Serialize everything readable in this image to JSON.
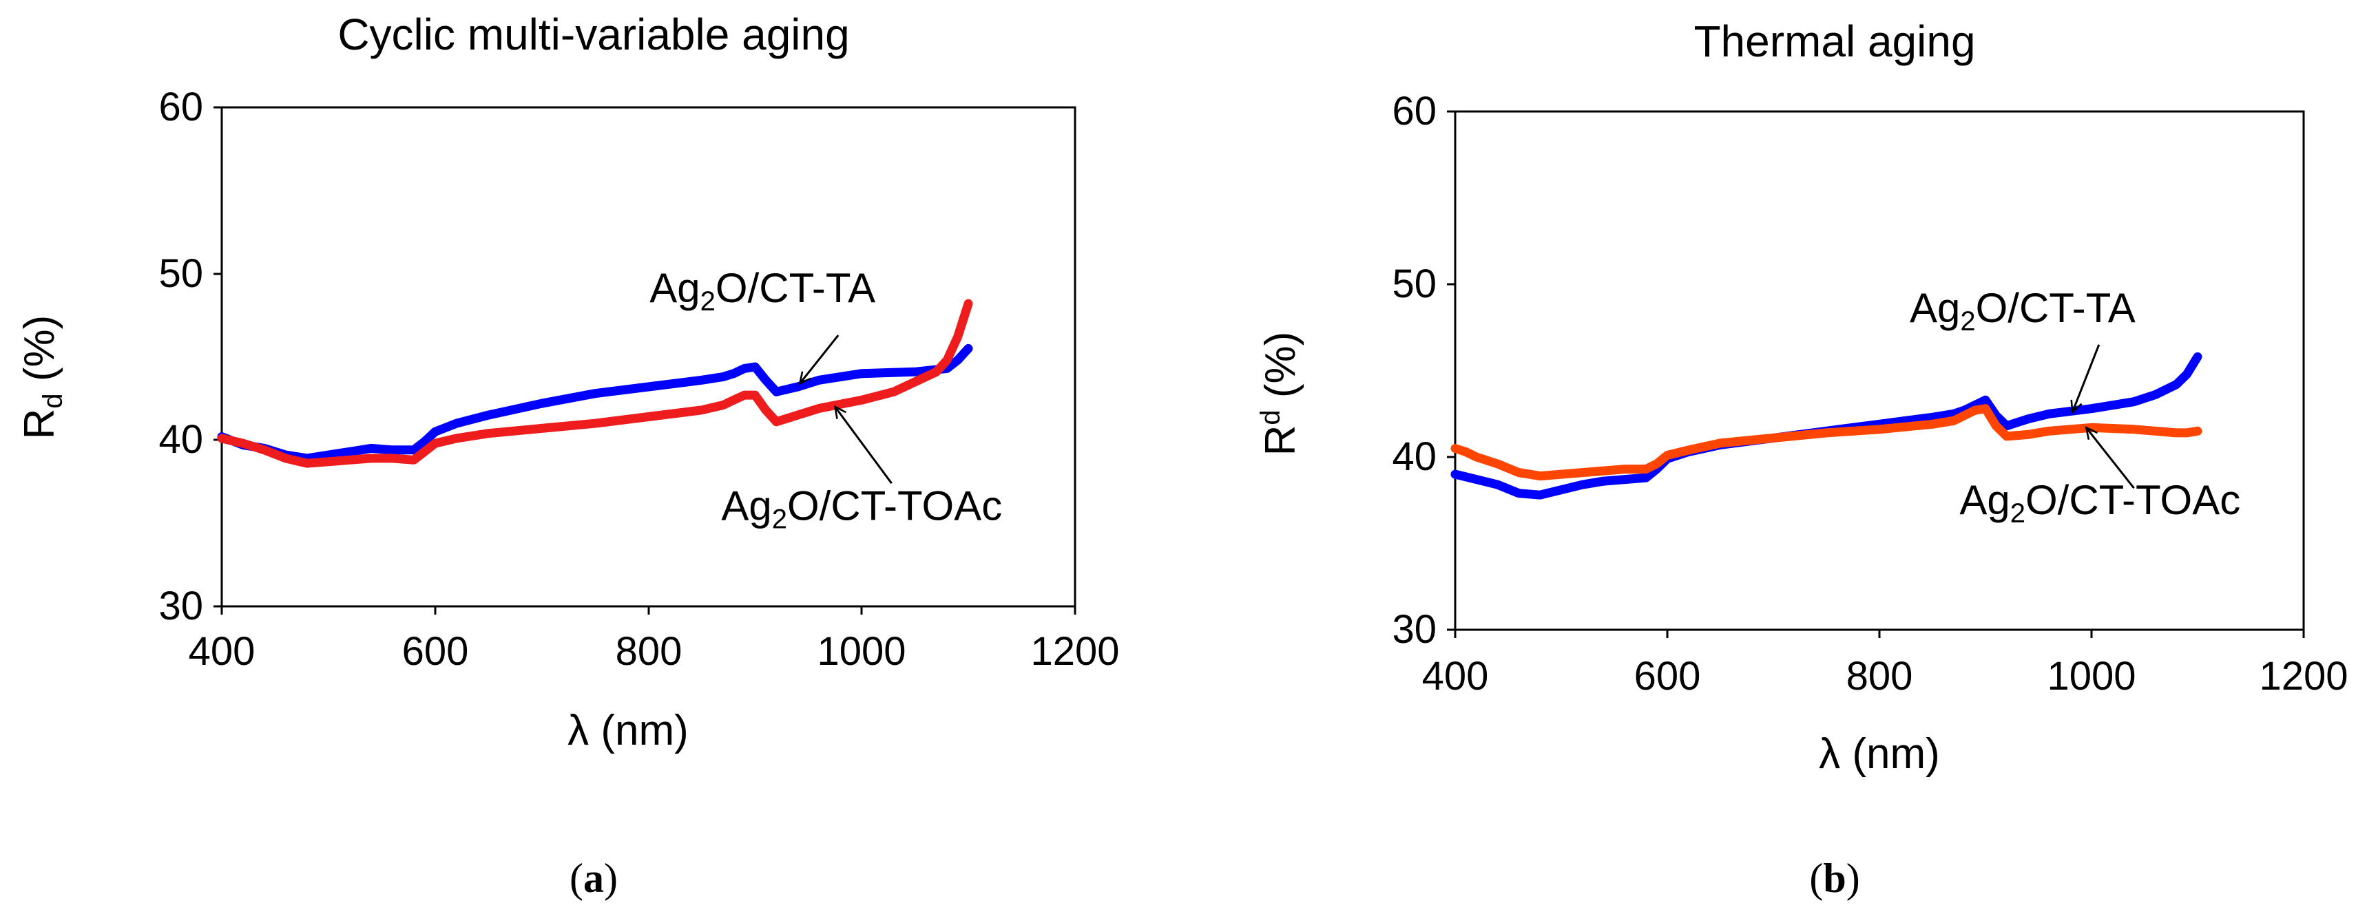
{
  "chart_data": [
    {
      "type": "line",
      "title": "Cyclic multi-variable aging",
      "xlabel": "λ (nm)",
      "ylabel": "R",
      "ylabel_sub": "d",
      "ylabel_unit": " (%)",
      "xlim": [
        400,
        1200
      ],
      "ylim": [
        30,
        60
      ],
      "xticks": [
        "400",
        "600",
        "800",
        "1000",
        "1200"
      ],
      "yticks": [
        "30",
        "40",
        "50",
        "60"
      ],
      "panel_label_open": "(",
      "panel_label": "a",
      "panel_label_close": ")",
      "series": [
        {
          "name": "Ag2O/CT-TA",
          "label_base": "Ag",
          "label_sub": "2",
          "label_rest": "O/CT-TA",
          "color": "#0000ff",
          "x": [
            400,
            420,
            440,
            460,
            480,
            500,
            520,
            540,
            560,
            580,
            590,
            600,
            620,
            650,
            700,
            750,
            800,
            850,
            870,
            880,
            890,
            900,
            910,
            920,
            940,
            960,
            1000,
            1050,
            1080,
            1090,
            1100
          ],
          "y": [
            40.2,
            39.7,
            39.5,
            39.1,
            38.9,
            39.1,
            39.3,
            39.5,
            39.4,
            39.4,
            39.9,
            40.5,
            41.0,
            41.5,
            42.2,
            42.8,
            43.2,
            43.6,
            43.8,
            44.0,
            44.3,
            44.4,
            43.6,
            42.9,
            43.2,
            43.6,
            44.0,
            44.1,
            44.3,
            44.8,
            45.5
          ]
        },
        {
          "name": "Ag2O/CT-TOAc",
          "label_base": "Ag",
          "label_sub": "2",
          "label_rest": "O/CT-TOAc",
          "color": "#ee1c1c",
          "x": [
            400,
            420,
            440,
            460,
            480,
            500,
            520,
            540,
            560,
            580,
            590,
            600,
            620,
            650,
            700,
            750,
            800,
            850,
            870,
            880,
            890,
            900,
            910,
            920,
            940,
            960,
            1000,
            1030,
            1050,
            1070,
            1080,
            1090,
            1100
          ],
          "y": [
            40.1,
            39.8,
            39.4,
            38.9,
            38.6,
            38.7,
            38.8,
            38.9,
            38.9,
            38.8,
            39.3,
            39.8,
            40.1,
            40.4,
            40.7,
            41.0,
            41.4,
            41.8,
            42.1,
            42.4,
            42.7,
            42.7,
            41.8,
            41.1,
            41.5,
            41.9,
            42.4,
            42.9,
            43.5,
            44.1,
            44.8,
            46.2,
            48.2
          ]
        }
      ],
      "annotations": [
        {
          "series_index": 0,
          "tip": [
            942,
            43.4
          ],
          "tail": [
            978,
            46.3
          ],
          "text_anchor": [
            907,
            48.3
          ]
        },
        {
          "series_index": 1,
          "tip": [
            975,
            42.0
          ],
          "tail": [
            1028,
            37.4
          ],
          "text_anchor": [
            1000,
            35.2
          ]
        }
      ]
    },
    {
      "type": "line",
      "title": "Thermal aging",
      "xlabel": "λ (nm)",
      "ylabel": "R",
      "ylabel_sup": "d",
      "ylabel_unit": " (%)",
      "xlim": [
        400,
        1200
      ],
      "ylim": [
        30,
        60
      ],
      "xticks": [
        "400",
        "600",
        "800",
        "1000",
        "1200"
      ],
      "yticks": [
        "30",
        "40",
        "50",
        "60"
      ],
      "panel_label_open": "(",
      "panel_label": "b",
      "panel_label_close": ")",
      "series": [
        {
          "name": "Ag2O/CT-TA",
          "label_base": "Ag",
          "label_sub": "2",
          "label_rest": "O/CT-TA",
          "color": "#0000ff",
          "x": [
            400,
            420,
            440,
            460,
            480,
            500,
            520,
            540,
            560,
            580,
            590,
            600,
            620,
            650,
            700,
            750,
            800,
            850,
            870,
            880,
            890,
            900,
            910,
            920,
            940,
            960,
            1000,
            1040,
            1060,
            1080,
            1090,
            1100
          ],
          "y": [
            39.0,
            38.7,
            38.4,
            37.9,
            37.8,
            38.1,
            38.4,
            38.6,
            38.7,
            38.8,
            39.3,
            39.9,
            40.3,
            40.7,
            41.1,
            41.5,
            41.9,
            42.3,
            42.5,
            42.7,
            43.0,
            43.3,
            42.4,
            41.8,
            42.2,
            42.5,
            42.8,
            43.2,
            43.6,
            44.2,
            44.8,
            45.8
          ]
        },
        {
          "name": "Ag2O/CT-TOAc",
          "label_base": "Ag",
          "label_sub": "2",
          "label_rest": "O/CT-TOAc",
          "color": "#ff4500",
          "x": [
            400,
            410,
            420,
            430,
            440,
            460,
            480,
            500,
            520,
            540,
            560,
            580,
            590,
            600,
            620,
            650,
            700,
            750,
            800,
            850,
            870,
            880,
            890,
            900,
            910,
            920,
            940,
            960,
            1000,
            1040,
            1060,
            1080,
            1090,
            1100
          ],
          "y": [
            40.5,
            40.3,
            40.0,
            39.8,
            39.6,
            39.1,
            38.9,
            39.0,
            39.1,
            39.2,
            39.3,
            39.3,
            39.6,
            40.1,
            40.4,
            40.8,
            41.1,
            41.4,
            41.6,
            41.9,
            42.1,
            42.4,
            42.7,
            42.8,
            41.8,
            41.2,
            41.3,
            41.5,
            41.7,
            41.6,
            41.5,
            41.4,
            41.4,
            41.5
          ]
        }
      ],
      "annotations": [
        {
          "series_index": 0,
          "tip": [
            982,
            42.6
          ],
          "tail": [
            1007,
            46.5
          ],
          "text_anchor": [
            935,
            47.8
          ]
        },
        {
          "series_index": 1,
          "tip": [
            995,
            41.7
          ],
          "tail": [
            1040,
            38.2
          ],
          "text_anchor": [
            1008,
            36.7
          ]
        }
      ]
    }
  ]
}
